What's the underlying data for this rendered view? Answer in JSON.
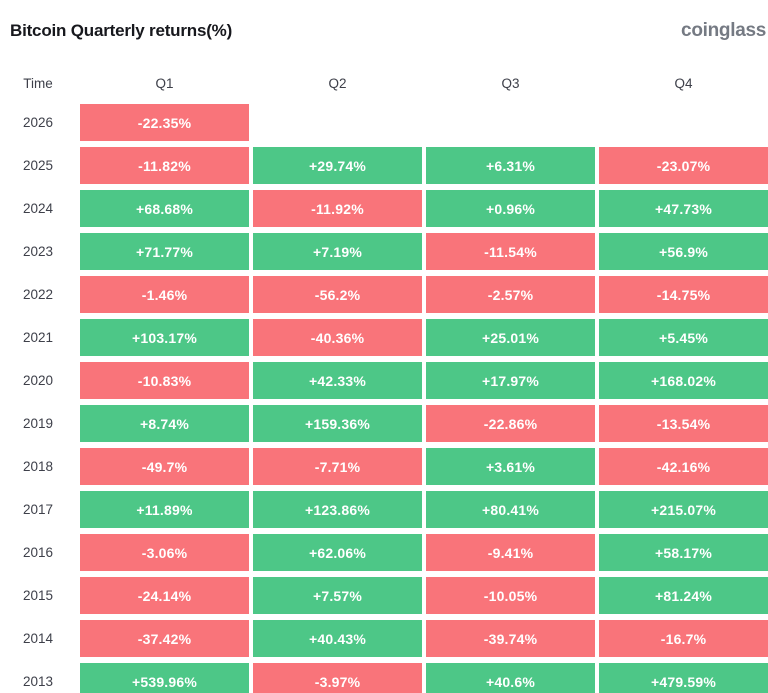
{
  "header": {
    "title": "Bitcoin Quarterly returns(%)",
    "logo_text": "coinglass"
  },
  "chart_data": {
    "type": "heatmap",
    "title": "Bitcoin Quarterly returns(%)",
    "row_label_header": "Time",
    "columns": [
      "Q1",
      "Q2",
      "Q3",
      "Q4"
    ],
    "rows": [
      {
        "year": "2026",
        "values": [
          "-22.35%",
          null,
          null,
          null
        ]
      },
      {
        "year": "2025",
        "values": [
          "-11.82%",
          "+29.74%",
          "+6.31%",
          "-23.07%"
        ]
      },
      {
        "year": "2024",
        "values": [
          "+68.68%",
          "-11.92%",
          "+0.96%",
          "+47.73%"
        ]
      },
      {
        "year": "2023",
        "values": [
          "+71.77%",
          "+7.19%",
          "-11.54%",
          "+56.9%"
        ]
      },
      {
        "year": "2022",
        "values": [
          "-1.46%",
          "-56.2%",
          "-2.57%",
          "-14.75%"
        ]
      },
      {
        "year": "2021",
        "values": [
          "+103.17%",
          "-40.36%",
          "+25.01%",
          "+5.45%"
        ]
      },
      {
        "year": "2020",
        "values": [
          "-10.83%",
          "+42.33%",
          "+17.97%",
          "+168.02%"
        ]
      },
      {
        "year": "2019",
        "values": [
          "+8.74%",
          "+159.36%",
          "-22.86%",
          "-13.54%"
        ]
      },
      {
        "year": "2018",
        "values": [
          "-49.7%",
          "-7.71%",
          "+3.61%",
          "-42.16%"
        ]
      },
      {
        "year": "2017",
        "values": [
          "+11.89%",
          "+123.86%",
          "+80.41%",
          "+215.07%"
        ]
      },
      {
        "year": "2016",
        "values": [
          "-3.06%",
          "+62.06%",
          "-9.41%",
          "+58.17%"
        ]
      },
      {
        "year": "2015",
        "values": [
          "-24.14%",
          "+7.57%",
          "-10.05%",
          "+81.24%"
        ]
      },
      {
        "year": "2014",
        "values": [
          "-37.42%",
          "+40.43%",
          "-39.74%",
          "-16.7%"
        ]
      },
      {
        "year": "2013",
        "values": [
          "+539.96%",
          "-3.97%",
          "+40.6%",
          "+479.59%"
        ]
      }
    ],
    "positive_color": "#4dc787",
    "negative_color": "#f9747a",
    "legend_position": "none",
    "grid": false
  }
}
